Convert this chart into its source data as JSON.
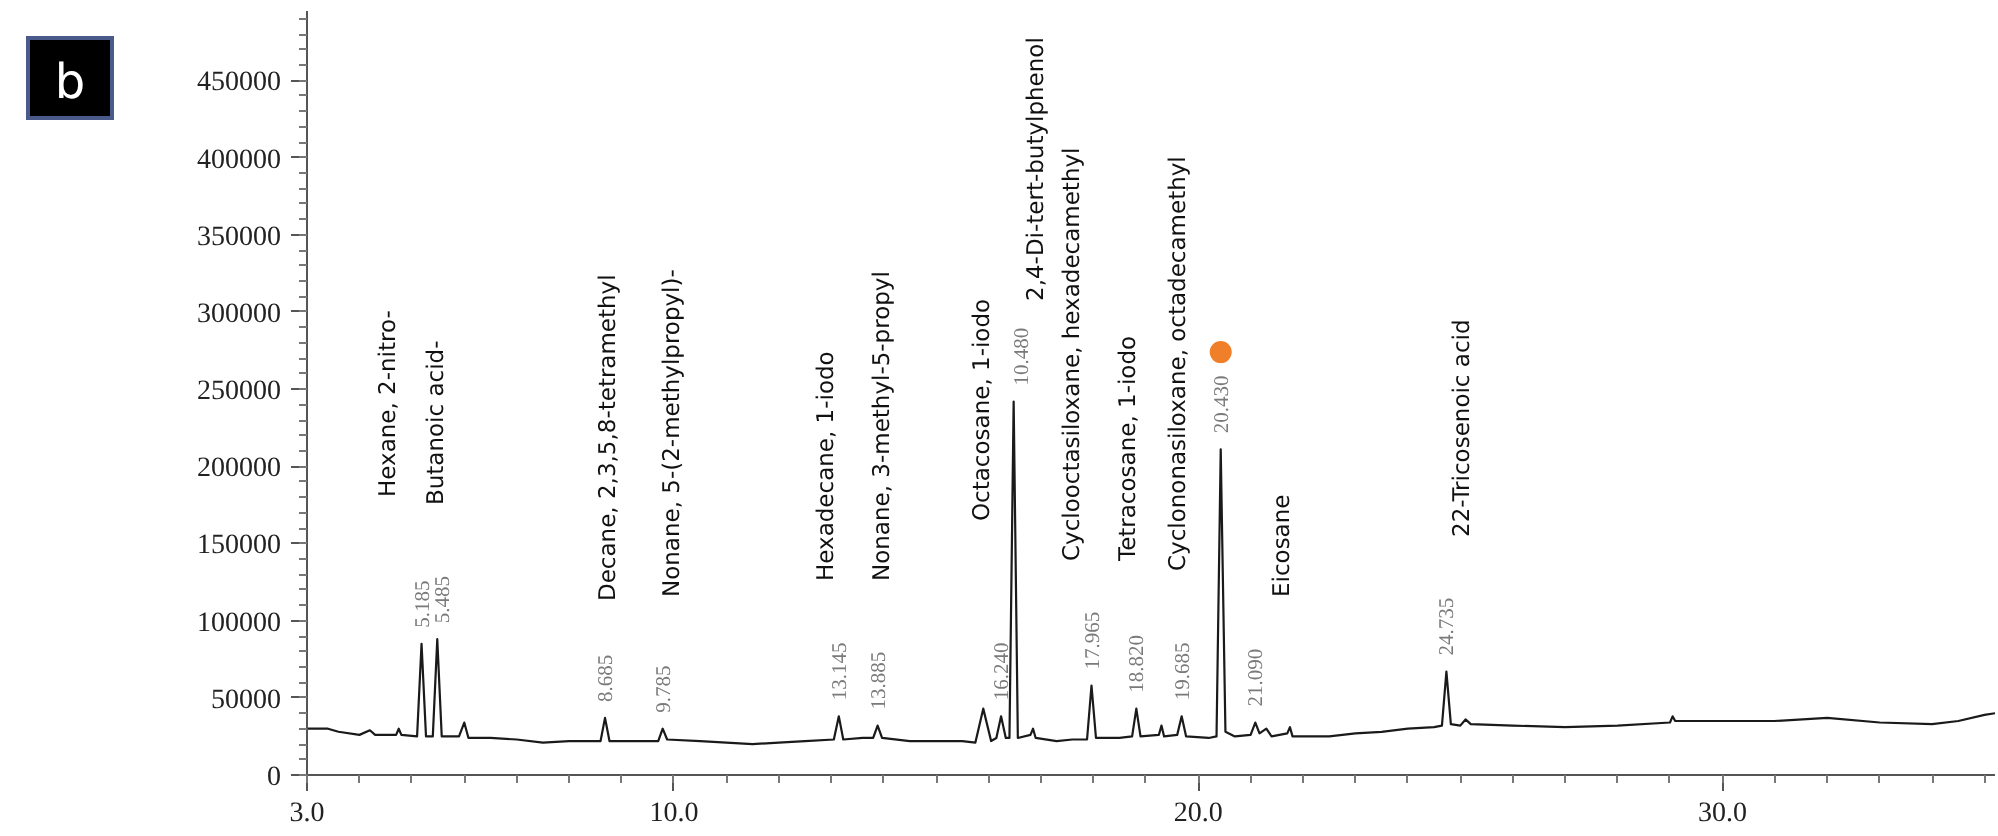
{
  "chart_data": {
    "type": "line",
    "xlim": [
      3.0,
      35.2
    ],
    "ylim": [
      0,
      495000
    ],
    "xticks": [
      {
        "value": 3,
        "label": "3.0"
      },
      {
        "value": 10,
        "label": "10.0"
      },
      {
        "value": 20,
        "label": "20.0"
      },
      {
        "value": 30,
        "label": "30.0"
      }
    ],
    "yticks": [
      0,
      50000,
      100000,
      150000,
      200000,
      250000,
      300000,
      350000,
      400000,
      450000
    ],
    "grid": false,
    "marker": "none",
    "line_style": "solid",
    "series": [
      {
        "color": "#1a1a1a",
        "x": [
          3.0,
          3.4,
          3.6,
          4.0,
          4.2,
          4.3,
          4.7,
          4.75,
          4.8,
          5.1,
          5.185,
          5.27,
          5.4,
          5.485,
          5.57,
          5.9,
          6.0,
          6.08,
          6.5,
          7.0,
          7.5,
          8.0,
          8.6,
          8.685,
          8.77,
          9.2,
          9.7,
          9.785,
          9.87,
          10.5,
          11.0,
          11.5,
          12.0,
          12.5,
          13.05,
          13.145,
          13.23,
          13.6,
          13.8,
          13.885,
          13.97,
          14.5,
          15.0,
          15.5,
          15.75,
          15.9,
          16.05,
          16.15,
          16.24,
          16.33,
          16.4,
          16.48,
          16.56,
          16.8,
          16.85,
          16.9,
          17.3,
          17.6,
          17.88,
          17.965,
          18.05,
          18.5,
          18.74,
          18.82,
          18.9,
          19.25,
          19.3,
          19.35,
          19.6,
          19.685,
          19.77,
          20.2,
          20.35,
          20.43,
          20.52,
          20.7,
          21.0,
          21.09,
          21.17,
          21.3,
          21.4,
          21.7,
          21.75,
          21.8,
          22.5,
          23.0,
          23.5,
          24.0,
          24.5,
          24.65,
          24.735,
          24.82,
          25.0,
          25.1,
          25.2,
          26.0,
          27.0,
          28.0,
          29.0,
          29.05,
          29.1,
          30.0,
          31.0,
          32.0,
          33.0,
          34.0,
          34.5,
          35.0,
          35.2
        ],
        "values": [
          30000,
          30000,
          28000,
          26000,
          29000,
          26000,
          26000,
          30000,
          26000,
          25000,
          85000,
          25000,
          25000,
          88000,
          25000,
          25000,
          34000,
          24000,
          24000,
          23000,
          21000,
          22000,
          22000,
          37000,
          22000,
          22000,
          22000,
          30000,
          23000,
          22000,
          21000,
          20000,
          21000,
          22000,
          23000,
          38000,
          23000,
          24000,
          24000,
          32000,
          24000,
          22000,
          22000,
          22000,
          21000,
          43000,
          22000,
          24000,
          38000,
          24000,
          24000,
          242000,
          24000,
          26000,
          30000,
          24000,
          22000,
          23000,
          23000,
          58000,
          24000,
          24000,
          25000,
          43000,
          25000,
          26000,
          32000,
          25000,
          26000,
          38000,
          25000,
          24000,
          25000,
          211000,
          28000,
          25000,
          26000,
          34000,
          27000,
          30000,
          25000,
          27000,
          31000,
          25000,
          25000,
          27000,
          28000,
          30000,
          31000,
          32000,
          67000,
          33000,
          32000,
          36000,
          33000,
          32000,
          31000,
          32000,
          34000,
          38000,
          35000,
          35000,
          35000,
          37000,
          34000,
          33000,
          35000,
          39000,
          40000
        ]
      },
      {
        "type": "scatter",
        "color": "#f07f2a",
        "marker": "circle",
        "x": [
          20.43
        ],
        "values": [
          274000
        ]
      }
    ],
    "annotations": [
      "b",
      {
        "text": "5.185",
        "x": 5.185,
        "y": 85000
      },
      "Hexane, 2-nitro-",
      {
        "text": "5.485",
        "x": 5.485,
        "y": 88000
      },
      "Butanoic acid-",
      {
        "text": "8.685",
        "x": 8.685,
        "y": 37000
      },
      "Decane, 2,3,5,8-tetramethyl",
      {
        "text": "9.785",
        "x": 9.785,
        "y": 30000
      },
      "Nonane, 5-(2-methylpropyl)-",
      {
        "text": "13.145",
        "x": 13.145,
        "y": 38000
      },
      "Hexadecane, 1-iodo",
      {
        "text": "13.885",
        "x": 13.885,
        "y": 32000
      },
      "Nonane, 3-methyl-5-propyl",
      {
        "text": "16.240",
        "x": 16.24,
        "y": 38000
      },
      "Octacosane, 1-iodo",
      {
        "text": "10.480",
        "x": 16.48,
        "y": 242000
      },
      "2,4-Di-tert-butylphenol",
      {
        "text": "17.965",
        "x": 17.965,
        "y": 58000
      },
      "Cyclooctasiloxane, hexadecamethyl",
      {
        "text": "18.820",
        "x": 18.82,
        "y": 43000
      },
      "Tetracosane, 1-iodo",
      {
        "text": "19.685",
        "x": 19.685,
        "y": 38000
      },
      "Cyclononasiloxane, octadecamethyl",
      {
        "text": "20.430",
        "x": 20.43,
        "y": 211000
      },
      {
        "text": "21.090",
        "x": 21.09,
        "y": 34000
      },
      "Eicosane",
      {
        "text": "24.735",
        "x": 24.735,
        "y": 67000
      },
      "22-Tricosenoic acid"
    ]
  }
}
